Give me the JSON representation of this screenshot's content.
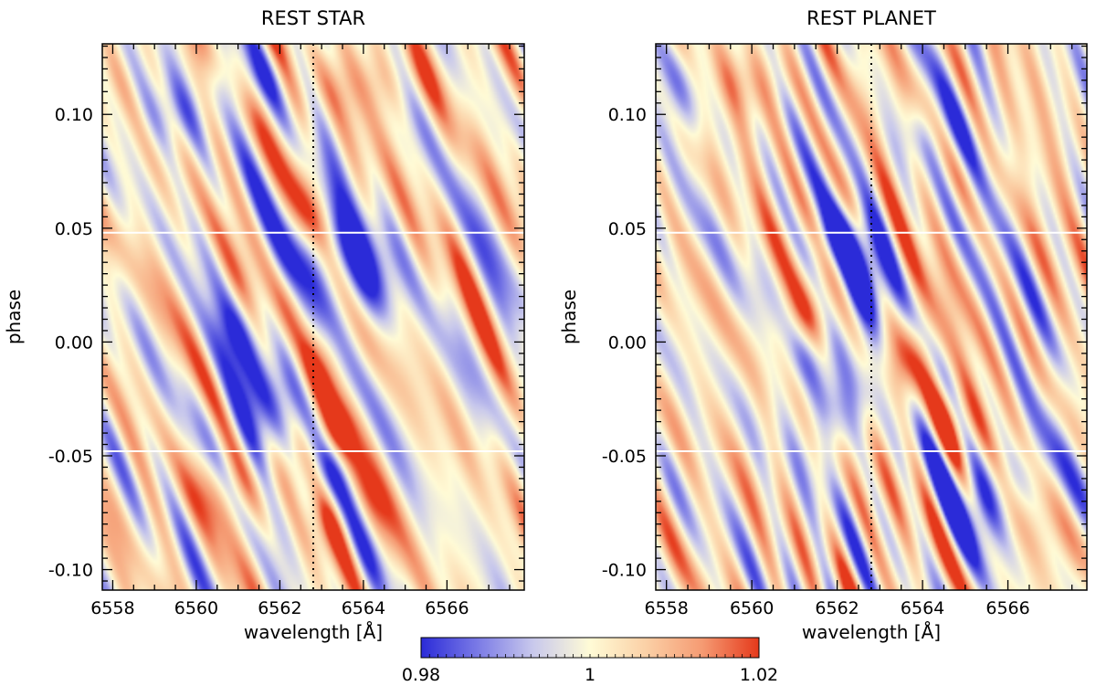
{
  "chart_data": {
    "type": "heatmap",
    "panels": [
      {
        "title": "REST STAR",
        "xlabel": "wavelength [Å]",
        "ylabel": "phase",
        "xlim": [
          6557.75,
          6567.85
        ],
        "ylim": [
          -0.109,
          0.131
        ],
        "xticks": [
          6558,
          6560,
          6562,
          6564,
          6566
        ],
        "xtick_labels": [
          "6558",
          "6560",
          "6562",
          "6564",
          "6566"
        ],
        "yticks": [
          0.1,
          0.05,
          0.0,
          -0.05,
          -0.1
        ],
        "ytick_labels": [
          "0.10",
          "0.05",
          "0.00",
          "-0.05",
          "-0.10"
        ],
        "reference_line_wavelength": 6562.8,
        "transit_boundary_phases": [
          0.048,
          -0.048
        ],
        "features": [
          {
            "wavelength": 6563.7,
            "phase": 0.027,
            "value": 0.978,
            "sw": 0.65,
            "sp": 0.017
          },
          {
            "wavelength": 6563.1,
            "phase": 0.04,
            "value": 0.987,
            "sw": 0.45,
            "sp": 0.012
          },
          {
            "wavelength": 6561.7,
            "phase": -0.024,
            "value": 0.982,
            "sw": 0.75,
            "sp": 0.019
          },
          {
            "wavelength": 6561.1,
            "phase": 0.006,
            "value": 0.99,
            "sw": 0.5,
            "sp": 0.012
          },
          {
            "wavelength": 6563.0,
            "phase": -0.008,
            "value": 1.018,
            "sw": 0.4,
            "sp": 0.022
          },
          {
            "wavelength": 6563.3,
            "phase": -0.04,
            "value": 1.012,
            "sw": 0.35,
            "sp": 0.01
          },
          {
            "wavelength": 6563.5,
            "phase": -0.075,
            "value": 1.008,
            "sw": 0.7,
            "sp": 0.012
          },
          {
            "wavelength": 6562.8,
            "phase": -0.065,
            "value": 0.99,
            "sw": 0.35,
            "sp": 0.012
          },
          {
            "wavelength": 6560.8,
            "phase": -0.065,
            "value": 1.008,
            "sw": 0.9,
            "sp": 0.012
          },
          {
            "wavelength": 6564.0,
            "phase": 0.115,
            "value": 1.008,
            "sw": 1.3,
            "sp": 0.012
          },
          {
            "wavelength": 6561.5,
            "phase": 0.115,
            "value": 0.993,
            "sw": 0.8,
            "sp": 0.01
          },
          {
            "wavelength": 6559.4,
            "phase": 0.1,
            "value": 0.992,
            "sw": 0.7,
            "sp": 0.012
          },
          {
            "wavelength": 6562.4,
            "phase": 0.02,
            "value": 1.008,
            "sw": 0.4,
            "sp": 0.012
          }
        ]
      },
      {
        "title": "REST PLANET",
        "xlabel": "wavelength [Å]",
        "ylabel": "phase",
        "xlim": [
          6557.75,
          6567.85
        ],
        "ylim": [
          -0.109,
          0.131
        ],
        "xticks": [
          6558,
          6560,
          6562,
          6564,
          6566
        ],
        "xtick_labels": [
          "6558",
          "6560",
          "6562",
          "6564",
          "6566"
        ],
        "yticks": [
          0.1,
          0.05,
          0.0,
          -0.05,
          -0.1
        ],
        "ytick_labels": [
          "0.10",
          "0.05",
          "0.00",
          "-0.05",
          "-0.10"
        ],
        "reference_line_wavelength": 6562.8,
        "transit_boundary_phases": [
          0.048,
          -0.048
        ],
        "features": [
          {
            "wavelength": 6562.6,
            "phase": 0.03,
            "value": 0.98,
            "sw": 0.45,
            "sp": 0.016
          },
          {
            "wavelength": 6562.0,
            "phase": 0.045,
            "value": 0.988,
            "sw": 0.5,
            "sp": 0.01
          },
          {
            "wavelength": 6563.6,
            "phase": -0.01,
            "value": 1.016,
            "sw": 0.45,
            "sp": 0.015
          },
          {
            "wavelength": 6564.6,
            "phase": -0.035,
            "value": 1.01,
            "sw": 0.5,
            "sp": 0.012
          },
          {
            "wavelength": 6562.2,
            "phase": -0.025,
            "value": 0.985,
            "sw": 0.55,
            "sp": 0.016
          },
          {
            "wavelength": 6561.5,
            "phase": -0.005,
            "value": 0.992,
            "sw": 0.45,
            "sp": 0.01
          },
          {
            "wavelength": 6565.3,
            "phase": -0.07,
            "value": 0.985,
            "sw": 0.5,
            "sp": 0.015
          },
          {
            "wavelength": 6566.3,
            "phase": -0.06,
            "value": 0.993,
            "sw": 0.5,
            "sp": 0.012
          },
          {
            "wavelength": 6560.0,
            "phase": 0.115,
            "value": 1.008,
            "sw": 0.8,
            "sp": 0.012
          },
          {
            "wavelength": 6558.3,
            "phase": 0.11,
            "value": 0.99,
            "sw": 0.5,
            "sp": 0.015
          },
          {
            "wavelength": 6564.2,
            "phase": 0.09,
            "value": 0.993,
            "sw": 0.7,
            "sp": 0.012
          },
          {
            "wavelength": 6561.2,
            "phase": 0.01,
            "value": 1.007,
            "sw": 0.5,
            "sp": 0.012
          }
        ]
      }
    ],
    "colorbar": {
      "min": 0.98,
      "max": 1.02,
      "tick_values": [
        0.98,
        1.0,
        1.02
      ],
      "tick_labels": [
        "0.98",
        "1",
        "1.02"
      ],
      "colors": [
        "#2b2bd8",
        "#7a7ae6",
        "#c9c9ec",
        "#fffbd6",
        "#fbd0a6",
        "#f59a72",
        "#e5391b"
      ]
    }
  },
  "colors": {
    "frame": "#000000",
    "transit_line": "#ffffff",
    "reference_line": "#000000"
  }
}
